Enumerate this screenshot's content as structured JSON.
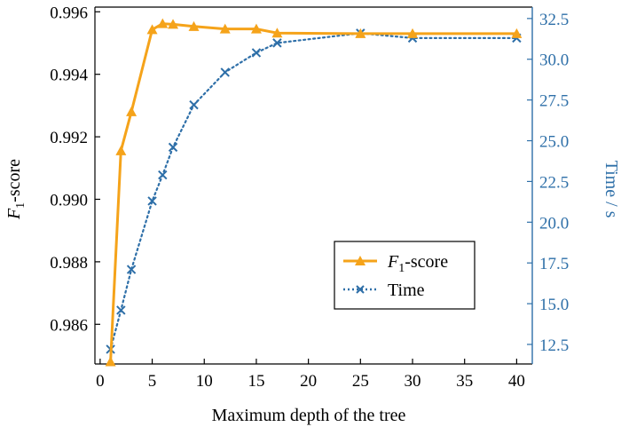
{
  "chart_data": {
    "type": "line",
    "xlabel": "Maximum depth of the tree",
    "ylabel_left": {
      "italic": "F",
      "sub": "1",
      "rest": "-score"
    },
    "ylabel_right": "Time / s",
    "xlim": [
      -0.5,
      41.5
    ],
    "ylim_left": [
      0.98473,
      0.99615
    ],
    "ylim_right": [
      11.3,
      33.2
    ],
    "x_ticks": [
      0,
      5,
      10,
      15,
      20,
      25,
      30,
      35,
      40
    ],
    "x_tick_labels": [
      "0",
      "5",
      "10",
      "15",
      "20",
      "25",
      "30",
      "35",
      "40"
    ],
    "y_left_ticks": [
      0.986,
      0.988,
      0.99,
      0.992,
      0.994,
      0.996
    ],
    "y_left_tick_labels": [
      "0.986",
      "0.988",
      "0.990",
      "0.992",
      "0.994",
      "0.996"
    ],
    "y_right_ticks": [
      12.5,
      15.0,
      17.5,
      20.0,
      22.5,
      25.0,
      27.5,
      30.0,
      32.5
    ],
    "y_right_tick_labels": [
      "12.5",
      "15.0",
      "17.5",
      "20.0",
      "22.5",
      "25.0",
      "27.5",
      "30.0",
      "32.5"
    ],
    "legend_position": "center-right",
    "series": [
      {
        "name": "F1-score",
        "legend_label": {
          "italic": "F",
          "sub": "1",
          "rest": "-score"
        },
        "axis": "left",
        "color": "#f5a31a",
        "marker": "triangle",
        "line_style": "solid",
        "x": [
          1,
          2,
          3,
          5,
          6,
          7,
          9,
          12,
          15,
          17,
          25,
          30,
          40
        ],
        "y": [
          0.9848,
          0.99155,
          0.9928,
          0.99543,
          0.99562,
          0.9956,
          0.99553,
          0.99545,
          0.99545,
          0.99532,
          0.9953,
          0.9953,
          0.9953
        ]
      },
      {
        "name": "Time",
        "legend_label": {
          "italic": "",
          "sub": "",
          "rest": "Time"
        },
        "axis": "right",
        "color": "#2e6fa8",
        "marker": "x",
        "line_style": "dotted",
        "x": [
          1,
          2,
          3,
          5,
          6,
          7,
          9,
          12,
          15,
          17,
          25,
          30,
          40
        ],
        "y": [
          12.2,
          14.6,
          17.1,
          21.3,
          22.9,
          24.6,
          27.2,
          29.2,
          30.4,
          31.0,
          31.6,
          31.3,
          31.3
        ]
      }
    ]
  },
  "colors": {
    "left_axis": "#000000",
    "right_axis": "#2e6fa8",
    "f1_series": "#f5a31a",
    "time_series": "#2e6fa8"
  }
}
